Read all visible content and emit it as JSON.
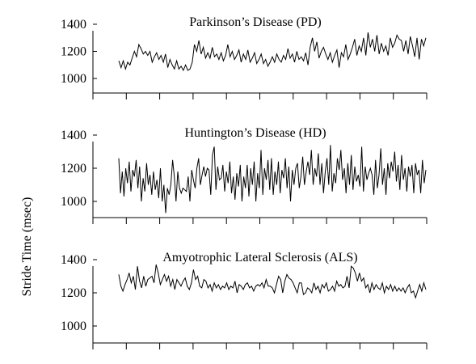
{
  "figure": {
    "ylabel": "Stride Time (msec)"
  },
  "chart_data": [
    {
      "type": "line",
      "title": "Parkinson’s Disease (PD)",
      "ylabel": "Stride Time (msec)",
      "ylim": [
        900,
        1400
      ],
      "yticks": [
        1000,
        1200,
        1400
      ],
      "xlim": [
        0,
        100
      ],
      "xticks_count": 11,
      "xticks_labeled": false,
      "grid": false,
      "series": [
        {
          "values": [
            1130,
            1080,
            1130,
            1070,
            1120,
            1100,
            1150,
            1200,
            1160,
            1250,
            1220,
            1180,
            1200,
            1170,
            1200,
            1120,
            1160,
            1190,
            1140,
            1170,
            1120,
            1180,
            1080,
            1140,
            1100,
            1070,
            1130,
            1070,
            1090,
            1060,
            1100,
            1060,
            1070,
            1120,
            1250,
            1200,
            1280,
            1180,
            1230,
            1150,
            1190,
            1150,
            1230,
            1160,
            1180,
            1140,
            1190,
            1130,
            1170,
            1250,
            1160,
            1200,
            1140,
            1170,
            1210,
            1120,
            1180,
            1140,
            1210,
            1120,
            1150,
            1190,
            1110,
            1140,
            1180,
            1110,
            1140,
            1090,
            1120,
            1160,
            1120,
            1180,
            1140,
            1120,
            1170,
            1140,
            1220,
            1150,
            1180,
            1120,
            1200,
            1140,
            1160,
            1130,
            1190,
            1100,
            1230,
            1300,
            1200,
            1270,
            1150,
            1200,
            1230,
            1180,
            1140,
            1190,
            1120,
            1170,
            1210,
            1080,
            1190,
            1160,
            1250,
            1140,
            1180,
            1230,
            1290,
            1170,
            1240,
            1200,
            1300,
            1170,
            1340,
            1230,
            1290,
            1200,
            1320,
            1180,
            1260,
            1200,
            1240,
            1170,
            1300,
            1230,
            1260,
            1320,
            1290,
            1280,
            1200,
            1280,
            1180,
            1310,
            1240,
            1160,
            1300,
            1140,
            1290,
            1240,
            1300
          ]
        }
      ]
    },
    {
      "type": "line",
      "title": "Huntington’s Disease (HD)",
      "ylabel": "Stride Time (msec)",
      "ylim": [
        900,
        1400
      ],
      "yticks": [
        1000,
        1200,
        1400
      ],
      "xlim": [
        0,
        100
      ],
      "xticks_count": 11,
      "xticks_labeled": false,
      "grid": false,
      "series": [
        {
          "values": [
            1260,
            1050,
            1180,
            1030,
            1200,
            1110,
            1240,
            1060,
            1190,
            1150,
            1250,
            1080,
            1210,
            1000,
            1140,
            1060,
            1230,
            1100,
            1160,
            1040,
            1180,
            1070,
            1130,
            1020,
            1200,
            1000,
            1100,
            930,
            1080,
            1040,
            1100,
            1250,
            1150,
            1000,
            1180,
            1080,
            1050,
            1080,
            1070,
            1060,
            1150,
            1000,
            1190,
            1130,
            1080,
            1200,
            1260,
            1100,
            1160,
            1210,
            1150,
            1200,
            1190,
            1040,
            1280,
            1330,
            1070,
            1210,
            1130,
            1140,
            1220,
            1060,
            1180,
            1110,
            1240,
            1050,
            1150,
            1010,
            1170,
            1090,
            1220,
            1000,
            1150,
            1080,
            1220,
            1030,
            1200,
            1100,
            1240,
            1000,
            1170,
            1080,
            1310,
            1040,
            1200,
            1130,
            1250,
            1070,
            1260,
            1040,
            1180,
            1100,
            1240,
            1050,
            1190,
            1140,
            1260,
            1080,
            1210,
            1000,
            1190,
            1100,
            1200,
            1230,
            1080,
            1150,
            1270,
            1100,
            1180,
            1240,
            1160,
            1310,
            1100,
            1200,
            1150,
            1290,
            1100,
            1230,
            1050,
            1180,
            1260,
            1100,
            1340,
            1060,
            1170,
            1110,
            1260,
            1190,
            1310,
            1130,
            1200,
            1050,
            1230,
            1100,
            1280,
            1070,
            1210,
            1120,
            1160,
            1090,
            1330,
            1060,
            1210,
            1130,
            1170,
            1200,
            1160,
            1040,
            1250,
            1080,
            1160,
            1320,
            1100,
            1200,
            1040,
            1230,
            1140,
            1240,
            1180,
            1300,
            1120,
            1220,
            1070,
            1280,
            1130,
            1200,
            1060,
            1210,
            1150,
            1220,
            1050,
            1230,
            1160,
            1190,
            1050,
            1250,
            1110,
            1190
          ]
        }
      ]
    },
    {
      "type": "line",
      "title": "Amyotrophic Lateral Sclerosis (ALS)",
      "ylabel": "Stride Time (msec)",
      "ylim": [
        900,
        1400
      ],
      "yticks": [
        1000,
        1200,
        1400
      ],
      "xlim": [
        0,
        100
      ],
      "xticks_count": 11,
      "xticks_labeled": false,
      "grid": false,
      "series": [
        {
          "values": [
            1310,
            1240,
            1210,
            1250,
            1280,
            1320,
            1260,
            1300,
            1220,
            1360,
            1270,
            1230,
            1300,
            1240,
            1280,
            1290,
            1300,
            1260,
            1370,
            1320,
            1250,
            1280,
            1310,
            1270,
            1300,
            1240,
            1280,
            1220,
            1280,
            1260,
            1240,
            1270,
            1290,
            1240,
            1220,
            1260,
            1340,
            1280,
            1300,
            1240,
            1230,
            1280,
            1270,
            1230,
            1250,
            1210,
            1260,
            1230,
            1250,
            1220,
            1240,
            1230,
            1260,
            1220,
            1240,
            1230,
            1270,
            1200,
            1250,
            1240,
            1220,
            1250,
            1260,
            1230,
            1240,
            1210,
            1240,
            1250,
            1240,
            1260,
            1230,
            1280,
            1240,
            1240,
            1230,
            1200,
            1250,
            1300,
            1280,
            1200,
            1270,
            1310,
            1290,
            1280,
            1260,
            1230,
            1200,
            1260,
            1260,
            1190,
            1200,
            1230,
            1220,
            1200,
            1260,
            1220,
            1240,
            1200,
            1250,
            1230,
            1260,
            1210,
            1220,
            1240,
            1210,
            1270,
            1240,
            1250,
            1230,
            1240,
            1300,
            1230,
            1360,
            1350,
            1320,
            1270,
            1320,
            1270,
            1290,
            1230,
            1250,
            1200,
            1260,
            1220,
            1250,
            1230,
            1220,
            1260,
            1200,
            1240,
            1220,
            1250,
            1210,
            1240,
            1210,
            1230,
            1210,
            1230,
            1200,
            1230,
            1250,
            1200,
            1210,
            1170,
            1210,
            1250,
            1210,
            1260,
            1220
          ]
        }
      ]
    }
  ]
}
